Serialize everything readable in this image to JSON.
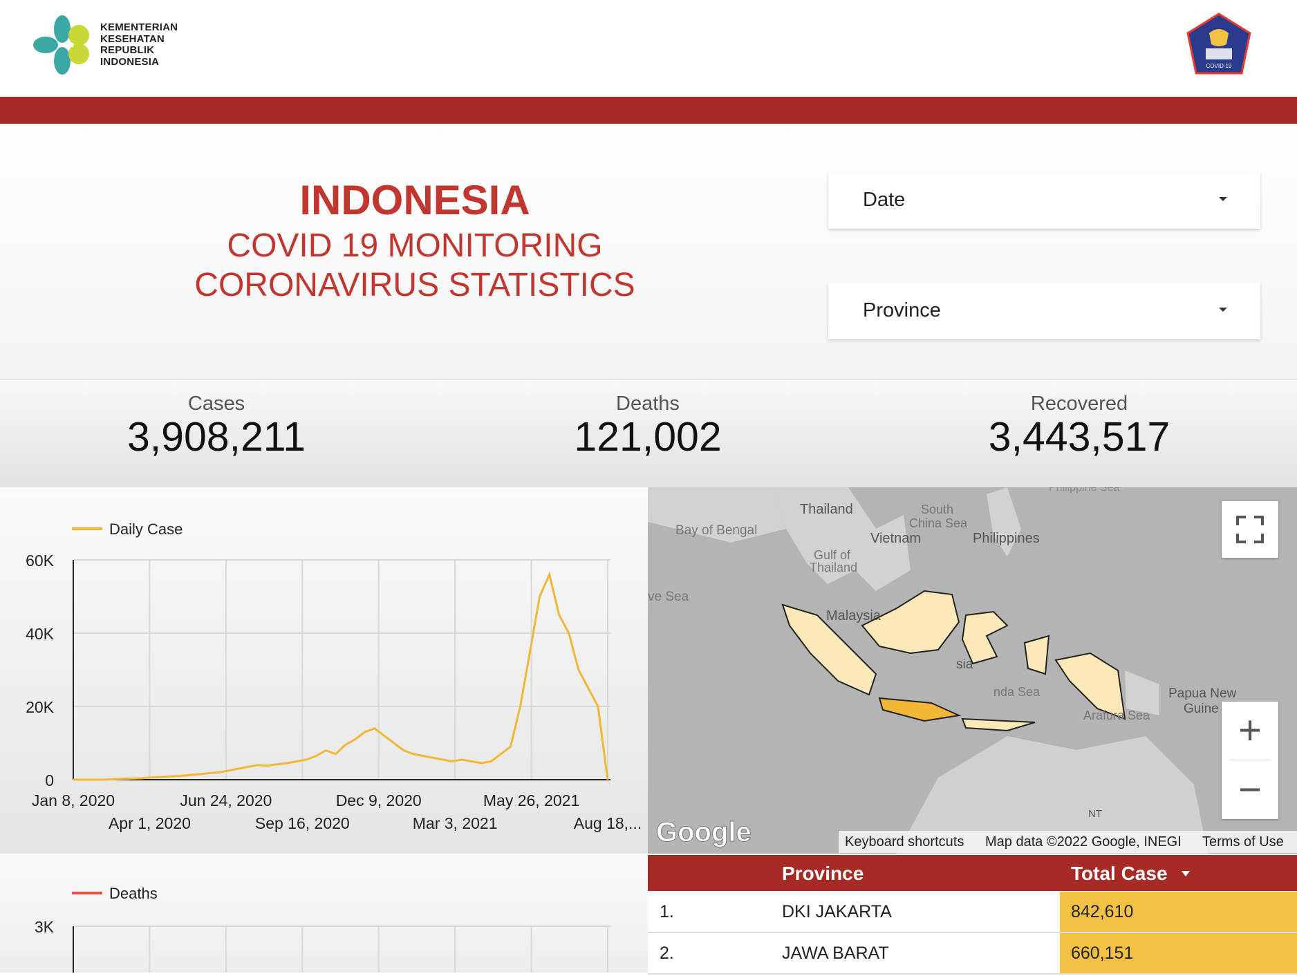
{
  "header": {
    "ministry_logo_lines": [
      "KEMENTERIAN",
      "KESEHATAN",
      "REPUBLIK",
      "INDONESIA"
    ],
    "emblem_text": "COVID-19"
  },
  "title": {
    "main": "INDONESIA",
    "sub1": "COVID 19 MONITORING",
    "sub2": "CORONAVIRUS STATISTICS"
  },
  "filters": {
    "date_label": "Date",
    "province_label": "Province"
  },
  "stats": {
    "cases_label": "Cases",
    "cases_value": "3,908,211",
    "deaths_label": "Deaths",
    "deaths_value": "121,002",
    "recovered_label": "Recovered",
    "recovered_value": "3,443,517"
  },
  "cases_chart": {
    "legend": "Daily Case",
    "y_ticks": [
      "60K",
      "40K",
      "20K",
      "0"
    ],
    "x_ticks_row1": [
      "Jan 8, 2020",
      "Jun 24, 2020",
      "Dec 9, 2020",
      "May 26, 2021"
    ],
    "x_ticks_row2": [
      "Apr 1, 2020",
      "Sep 16, 2020",
      "Mar 3, 2021",
      "Aug 18,..."
    ]
  },
  "deaths_chart": {
    "legend": "Deaths",
    "y_ticks": [
      "3K"
    ]
  },
  "map": {
    "labels": [
      "Thailand",
      "South",
      "China Sea",
      "Bay of Bengal",
      "Vietnam",
      "Philippines",
      "Gulf of",
      "Thailand",
      "ve Sea",
      "Malaysia",
      "sia",
      "nda Sea",
      "Papua New",
      "Guine",
      "Arafura Sea",
      "NT",
      "Philippine Sea"
    ],
    "google_logo": "Google",
    "keyboard_shortcuts": "Keyboard shortcuts",
    "map_data": "Map data ©2022 Google, INEGI",
    "terms": "Terms of Use",
    "zoom_in_symbol": "+",
    "zoom_out_symbol": "−"
  },
  "table": {
    "col_province": "Province",
    "col_total": "Total Case",
    "rows": [
      {
        "rank": "1.",
        "province": "DKI JAKARTA",
        "total": "842,610"
      },
      {
        "rank": "2.",
        "province": "JAWA BARAT",
        "total": "660,151"
      }
    ]
  },
  "colors": {
    "brand_red": "#a82a25",
    "title_red": "#c1362f",
    "cases_line": "#f2b736",
    "deaths_line": "#e0534b",
    "table_highlight": "#f3c244"
  },
  "chart_data": [
    {
      "type": "line",
      "series": [
        {
          "name": "Daily Case",
          "values": [
            0,
            0,
            0,
            0,
            100,
            200,
            300,
            400,
            600,
            700,
            900,
            1000,
            1300,
            1500,
            1800,
            2000,
            2500,
            3000,
            3500,
            4000,
            3800,
            4200,
            4500,
            5000,
            5500,
            6500,
            8000,
            7000,
            9500,
            11000,
            13000,
            14000,
            12000,
            10000,
            8000,
            7000,
            6500,
            6000,
            5500,
            5000,
            5500,
            5000,
            4500,
            5000,
            7000,
            9000,
            20000,
            35000,
            50000,
            56000,
            45000,
            40000,
            30000,
            25000,
            20000,
            0
          ]
        }
      ],
      "y_ticks": [
        "60K",
        "40K",
        "20K",
        "0"
      ],
      "x_tick_labels": [
        "Jan 8, 2020",
        "Apr 1, 2020",
        "Jun 24, 2020",
        "Sep 16, 2020",
        "Dec 9, 2020",
        "Mar 3, 2021",
        "May 26, 2021",
        "Aug 18,..."
      ],
      "ylim": [
        0,
        60000
      ],
      "grid": true,
      "legend_position": "top-left"
    },
    {
      "type": "line",
      "series": [
        {
          "name": "Deaths",
          "values": []
        }
      ],
      "y_ticks": [
        "3K"
      ],
      "grid": true,
      "legend_position": "top-left"
    }
  ]
}
